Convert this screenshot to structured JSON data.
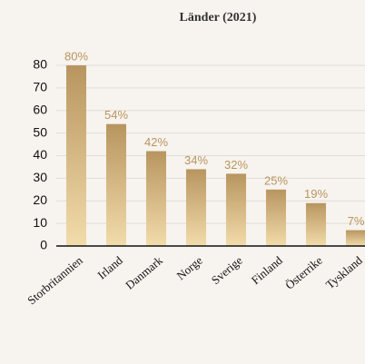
{
  "chart_data": {
    "type": "bar",
    "title": "Länder (2021)",
    "categories": [
      "Storbritannien",
      "Irland",
      "Danmark",
      "Norge",
      "Sverige",
      "Finland",
      "Österrike",
      "Tyskland"
    ],
    "values": [
      80,
      54,
      42,
      34,
      32,
      25,
      19,
      7
    ],
    "value_labels": [
      "80%",
      "54%",
      "42%",
      "34%",
      "32%",
      "25%",
      "19%",
      "7%"
    ],
    "color": "#b8955f",
    "ylim": [
      0,
      85
    ],
    "yticks": [
      0,
      10,
      20,
      30,
      40,
      50,
      60,
      70,
      80
    ],
    "grid": true
  }
}
